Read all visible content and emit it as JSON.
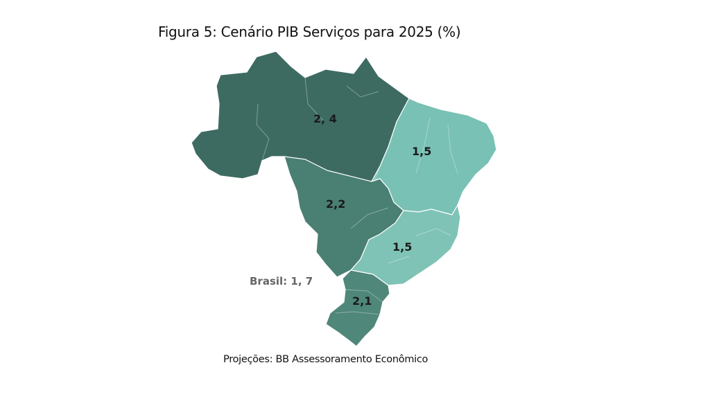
{
  "figure": {
    "title": "Figura 5: Cenário PIB Serviços para 2025 (%)",
    "source": "Projeções: BB Assessoramento Econômico",
    "national_label": "Brasil: 1, 7"
  },
  "regions": [
    {
      "id": "norte",
      "value_label": "2, 4",
      "value": 2.4,
      "color": "#3d6b62"
    },
    {
      "id": "nordeste",
      "value_label": "1,5",
      "value": 1.5,
      "color": "#79c1b4"
    },
    {
      "id": "centro-oeste",
      "value_label": "2,2",
      "value": 2.2,
      "color": "#4a7f73"
    },
    {
      "id": "sudeste",
      "value_label": "1,5",
      "value": 1.5,
      "color": "#7fc3b6"
    },
    {
      "id": "sul",
      "value_label": "2,1",
      "value": 2.1,
      "color": "#4f877a"
    }
  ]
}
